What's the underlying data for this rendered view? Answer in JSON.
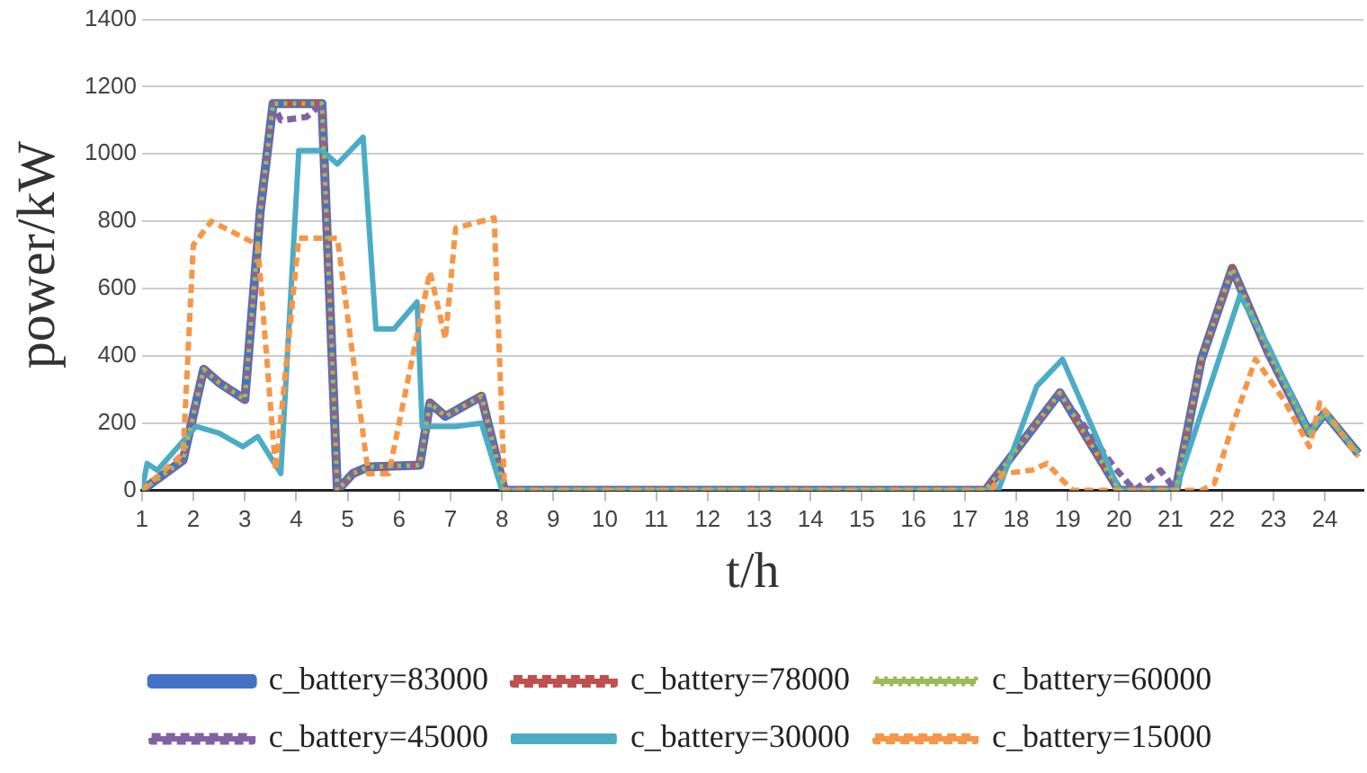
{
  "chart_data": {
    "type": "line",
    "xlabel": "t/h",
    "ylabel": "power/kW",
    "xlim": [
      1,
      24.75
    ],
    "xticks": [
      1,
      2,
      3,
      4,
      5,
      6,
      7,
      8,
      9,
      10,
      11,
      12,
      13,
      14,
      15,
      16,
      17,
      18,
      19,
      20,
      21,
      22,
      23,
      24
    ],
    "ylim": [
      0,
      1400
    ],
    "yticks": [
      0,
      200,
      400,
      600,
      800,
      1000,
      1200,
      1400
    ],
    "grid": "y",
    "legend": "bottom",
    "marker": "none",
    "series": [
      {
        "name": "c_battery=83000",
        "color": "#4472c4",
        "line_style": "solid",
        "x": [
          1,
          1.8,
          2.2,
          2.5,
          3,
          3.3,
          3.55,
          4.5,
          4.8,
          5.1,
          5.4,
          6.4,
          6.6,
          6.9,
          7.6,
          8.05,
          17.4,
          18.85,
          20,
          21.1,
          21.6,
          22.2,
          22.9,
          23.7,
          24,
          24.65
        ],
        "values": [
          0,
          90,
          360,
          320,
          270,
          830,
          1150,
          1150,
          0,
          50,
          70,
          75,
          260,
          220,
          280,
          0,
          0,
          290,
          0,
          0,
          390,
          660,
          410,
          170,
          230,
          110
        ]
      },
      {
        "name": "c_battery=78000",
        "color": "#c0504d",
        "line_style": "dashed",
        "x": [
          1,
          1.8,
          2.2,
          2.5,
          3,
          3.3,
          3.55,
          4.5,
          4.8,
          5.1,
          5.4,
          6.4,
          6.6,
          6.9,
          7.6,
          8.05,
          17.4,
          18.85,
          20,
          21.1,
          21.6,
          22.2,
          22.9,
          23.7,
          24,
          24.65
        ],
        "values": [
          0,
          90,
          360,
          320,
          270,
          830,
          1150,
          1150,
          0,
          50,
          70,
          75,
          260,
          220,
          280,
          0,
          0,
          290,
          0,
          0,
          390,
          660,
          410,
          170,
          230,
          110
        ]
      },
      {
        "name": "c_battery=60000",
        "color": "#9bbb59",
        "line_style": "dotted",
        "x": [
          1,
          1.8,
          2.2,
          2.5,
          3,
          3.3,
          3.55,
          4.5,
          4.8,
          5.1,
          5.4,
          6.4,
          6.6,
          6.9,
          7.6,
          8.05,
          17.4,
          18.85,
          20,
          21.1,
          21.6,
          22.2,
          22.9,
          23.7,
          24,
          24.65
        ],
        "values": [
          0,
          90,
          360,
          320,
          270,
          830,
          1150,
          1150,
          0,
          50,
          70,
          75,
          260,
          220,
          280,
          0,
          0,
          290,
          0,
          0,
          390,
          660,
          410,
          170,
          230,
          110
        ]
      },
      {
        "name": "c_battery=45000",
        "color": "#8064a2",
        "line_style": "dashed",
        "x": [
          1,
          1.8,
          2.2,
          2.5,
          3,
          3.3,
          3.55,
          3.7,
          4.2,
          4.5,
          4.8,
          5.1,
          5.4,
          6.4,
          6.6,
          6.9,
          7.6,
          8.05,
          17.4,
          18.85,
          19.9,
          20.3,
          20.8,
          21.1,
          21.6,
          22.2,
          22.9,
          23.7,
          24,
          24.65
        ],
        "values": [
          0,
          90,
          360,
          320,
          270,
          830,
          1150,
          1100,
          1110,
          1150,
          0,
          50,
          70,
          75,
          260,
          220,
          280,
          0,
          0,
          290,
          70,
          0,
          60,
          0,
          390,
          660,
          410,
          170,
          230,
          110
        ]
      },
      {
        "name": "c_battery=30000",
        "color": "#4bacc6",
        "line_style": "solid",
        "x": [
          1,
          1.1,
          1.3,
          2.05,
          2.5,
          2.96,
          3.25,
          3.7,
          4.05,
          4.5,
          4.8,
          5.3,
          5.55,
          5.9,
          6.35,
          6.45,
          7.1,
          7.6,
          8,
          17.65,
          18.4,
          18.9,
          19.5,
          20,
          21.1,
          22.35,
          22.9,
          23.7,
          24,
          24.65
        ],
        "values": [
          0,
          80,
          60,
          190,
          170,
          130,
          160,
          50,
          1010,
          1010,
          970,
          1050,
          480,
          480,
          560,
          190,
          190,
          200,
          0,
          0,
          310,
          390,
          180,
          0,
          0,
          580,
          430,
          170,
          230,
          110
        ]
      },
      {
        "name": "c_battery=15000",
        "color": "#f79646",
        "line_style": "dashed",
        "x": [
          1,
          1.8,
          2.0,
          2.35,
          3.25,
          3.6,
          4.05,
          4.8,
          5.4,
          5.8,
          6.6,
          6.9,
          7.1,
          7.85,
          8.05,
          17.5,
          17.75,
          18.3,
          18.6,
          18.9,
          19.1,
          21.6,
          21.85,
          22.2,
          22.65,
          23.2,
          23.7,
          23.9,
          24.65
        ],
        "values": [
          0,
          110,
          730,
          800,
          730,
          60,
          750,
          750,
          50,
          50,
          650,
          450,
          780,
          810,
          0,
          0,
          50,
          60,
          80,
          30,
          0,
          0,
          20,
          190,
          390,
          270,
          130,
          260,
          100
        ]
      }
    ]
  }
}
